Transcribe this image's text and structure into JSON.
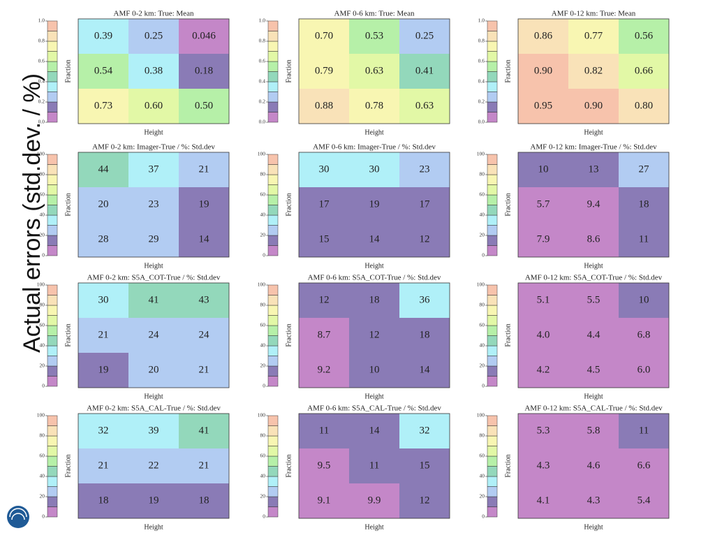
{
  "slide_title": "Actual errors (std.dev. / %)",
  "colormap": [
    "#c487c8",
    "#8a7bb6",
    "#b2ccf2",
    "#b0f0f8",
    "#93d8bb",
    "#b6f0a8",
    "#e2f8a6",
    "#f8f6b2",
    "#f9e2b8",
    "#f7c3ac"
  ],
  "chart_data": [
    {
      "type": "heatmap",
      "title": "AMF 0-2 km: True: Mean",
      "xlabel": "Height",
      "ylabel": "Fraction",
      "ylim": [
        0,
        1
      ],
      "yticks": [
        {
          "value": 0,
          "label": "0.0"
        },
        {
          "value": 0.2,
          "label": "0.2"
        },
        {
          "value": 0.4,
          "label": "0.4"
        },
        {
          "value": 0.6,
          "label": "0.6"
        },
        {
          "value": 0.8,
          "label": "0.8"
        },
        {
          "value": 1,
          "label": "1.0"
        }
      ],
      "values": [
        [
          0.39,
          0.25,
          0.046
        ],
        [
          0.54,
          0.38,
          0.18
        ],
        [
          0.73,
          0.6,
          0.5
        ]
      ],
      "value_labels": [
        [
          "0.39",
          "0.25",
          "0.046"
        ],
        [
          "0.54",
          "0.38",
          "0.18"
        ],
        [
          "0.73",
          "0.60",
          "0.50"
        ]
      ]
    },
    {
      "type": "heatmap",
      "title": "AMF 0-6 km: True: Mean",
      "xlabel": "Height",
      "ylabel": "Fraction",
      "ylim": [
        0,
        1
      ],
      "yticks": [
        {
          "value": 0,
          "label": "0.0"
        },
        {
          "value": 0.2,
          "label": "0.2"
        },
        {
          "value": 0.4,
          "label": "0.4"
        },
        {
          "value": 0.6,
          "label": "0.6"
        },
        {
          "value": 0.8,
          "label": "0.8"
        },
        {
          "value": 1,
          "label": "1.0"
        }
      ],
      "values": [
        [
          0.7,
          0.53,
          0.25
        ],
        [
          0.79,
          0.63,
          0.41
        ],
        [
          0.88,
          0.78,
          0.63
        ]
      ],
      "value_labels": [
        [
          "0.70",
          "0.53",
          "0.25"
        ],
        [
          "0.79",
          "0.63",
          "0.41"
        ],
        [
          "0.88",
          "0.78",
          "0.63"
        ]
      ]
    },
    {
      "type": "heatmap",
      "title": "AMF 0-12 km: True: Mean",
      "xlabel": "Height",
      "ylabel": "Fraction",
      "ylim": [
        0,
        1
      ],
      "yticks": [
        {
          "value": 0,
          "label": "0.0"
        },
        {
          "value": 0.2,
          "label": "0.2"
        },
        {
          "value": 0.4,
          "label": "0.4"
        },
        {
          "value": 0.6,
          "label": "0.6"
        },
        {
          "value": 0.8,
          "label": "0.8"
        },
        {
          "value": 1,
          "label": "1.0"
        }
      ],
      "values": [
        [
          0.86,
          0.77,
          0.56
        ],
        [
          0.9,
          0.82,
          0.66
        ],
        [
          0.95,
          0.9,
          0.8
        ]
      ],
      "value_labels": [
        [
          "0.86",
          "0.77",
          "0.56"
        ],
        [
          "0.90",
          "0.82",
          "0.66"
        ],
        [
          "0.95",
          "0.90",
          "0.80"
        ]
      ]
    },
    {
      "type": "heatmap",
      "title": "AMF 0-2 km: Imager-True / %: Std.dev",
      "xlabel": "Height",
      "ylabel": "Fraction",
      "ylim": [
        0,
        100
      ],
      "yticks": [
        0,
        20,
        40,
        60,
        80,
        100
      ],
      "values": [
        [
          44,
          37,
          21
        ],
        [
          20,
          23,
          19
        ],
        [
          28,
          29,
          14
        ]
      ]
    },
    {
      "type": "heatmap",
      "title": "AMF 0-6 km: Imager-True / %: Std.dev",
      "xlabel": "Height",
      "ylabel": "Fraction",
      "ylim": [
        0,
        100
      ],
      "yticks": [
        0,
        20,
        40,
        60,
        80,
        100
      ],
      "values": [
        [
          30,
          30,
          23
        ],
        [
          17,
          19,
          17
        ],
        [
          15,
          14,
          12
        ]
      ]
    },
    {
      "type": "heatmap",
      "title": "AMF 0-12 km: Imager-True / %: Std.dev",
      "xlabel": "Height",
      "ylabel": "Fraction",
      "ylim": [
        0,
        100
      ],
      "yticks": [
        0,
        20,
        40,
        60,
        80,
        100
      ],
      "values": [
        [
          10,
          13,
          27
        ],
        [
          5.7,
          9.4,
          18
        ],
        [
          7.9,
          8.6,
          11
        ]
      ]
    },
    {
      "type": "heatmap",
      "title": "AMF 0-2 km: S5A_COT-True / %: Std.dev",
      "xlabel": "Height",
      "ylabel": "Fraction",
      "ylim": [
        0,
        100
      ],
      "yticks": [
        0,
        20,
        40,
        60,
        80,
        100
      ],
      "values": [
        [
          30,
          41,
          43
        ],
        [
          21,
          24,
          24
        ],
        [
          19,
          20,
          21
        ]
      ]
    },
    {
      "type": "heatmap",
      "title": "AMF 0-6 km: S5A_COT-True / %: Std.dev",
      "xlabel": "Height",
      "ylabel": "Fraction",
      "ylim": [
        0,
        100
      ],
      "yticks": [
        0,
        20,
        40,
        60,
        80,
        100
      ],
      "values": [
        [
          12,
          18,
          36
        ],
        [
          8.7,
          12,
          18
        ],
        [
          9.2,
          10,
          14
        ]
      ]
    },
    {
      "type": "heatmap",
      "title": "AMF 0-12 km: S5A_COT-True / %: Std.dev",
      "xlabel": "Height",
      "ylabel": "Fraction",
      "ylim": [
        0,
        100
      ],
      "yticks": [
        0,
        20,
        40,
        60,
        80,
        100
      ],
      "values": [
        [
          5.1,
          5.5,
          10
        ],
        [
          4,
          4.4,
          6.8
        ],
        [
          4.2,
          4.5,
          6
        ]
      ],
      "value_labels": [
        [
          "5.1",
          "5.5",
          "10"
        ],
        [
          "4.0",
          "4.4",
          "6.8"
        ],
        [
          "4.2",
          "4.5",
          "6.0"
        ]
      ]
    },
    {
      "type": "heatmap",
      "title": "AMF 0-2 km: S5A_CAL-True / %: Std.dev",
      "xlabel": "Height",
      "ylabel": "Fraction",
      "ylim": [
        0,
        100
      ],
      "yticks": [
        0,
        20,
        40,
        60,
        80,
        100
      ],
      "values": [
        [
          32,
          39,
          41
        ],
        [
          21,
          22,
          21
        ],
        [
          18,
          19,
          18
        ]
      ]
    },
    {
      "type": "heatmap",
      "title": "AMF 0-6 km: S5A_CAL-True / %: Std.dev",
      "xlabel": "Height",
      "ylabel": "Fraction",
      "ylim": [
        0,
        100
      ],
      "yticks": [
        0,
        20,
        40,
        60,
        80,
        100
      ],
      "values": [
        [
          11,
          14,
          32
        ],
        [
          9.5,
          11,
          15
        ],
        [
          9.1,
          9.9,
          12
        ]
      ]
    },
    {
      "type": "heatmap",
      "title": "AMF 0-12 km: S5A_CAL-True / %: Std.dev",
      "xlabel": "Height",
      "ylabel": "Fraction",
      "ylim": [
        0,
        100
      ],
      "yticks": [
        0,
        20,
        40,
        60,
        80,
        100
      ],
      "values": [
        [
          5.3,
          5.8,
          11
        ],
        [
          4.3,
          4.6,
          6.6
        ],
        [
          4.1,
          4.3,
          5.4
        ]
      ]
    }
  ]
}
